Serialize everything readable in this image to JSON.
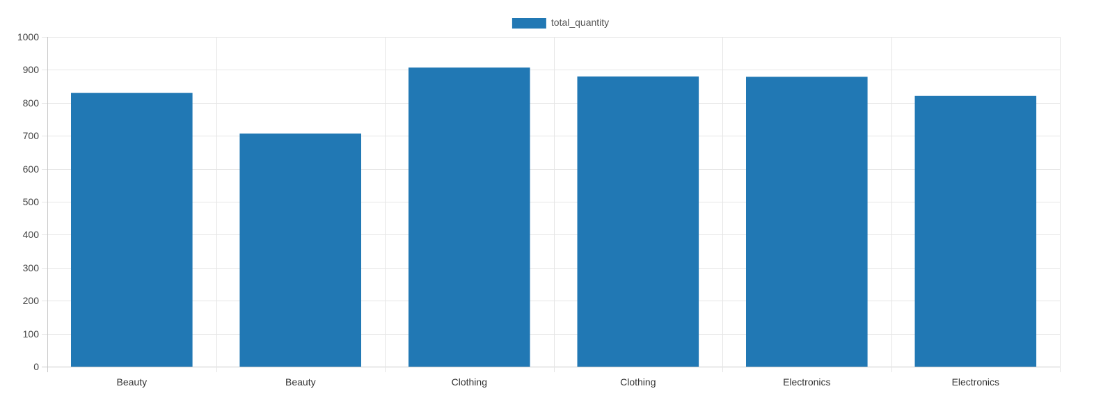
{
  "chart_data": {
    "type": "bar",
    "categories": [
      "Beauty",
      "Beauty",
      "Clothing",
      "Clothing",
      "Electronics",
      "Electronics"
    ],
    "series": [
      {
        "name": "total_quantity",
        "values": [
          830,
          707,
          907,
          880,
          879,
          821
        ],
        "color": "#2178b4"
      }
    ],
    "title": "",
    "xlabel": "",
    "ylabel": "",
    "ylim": [
      0,
      1000
    ],
    "yticks": [
      0,
      100,
      200,
      300,
      400,
      500,
      600,
      700,
      800,
      900,
      1000
    ],
    "grid": true,
    "legend_position": "top-center"
  }
}
